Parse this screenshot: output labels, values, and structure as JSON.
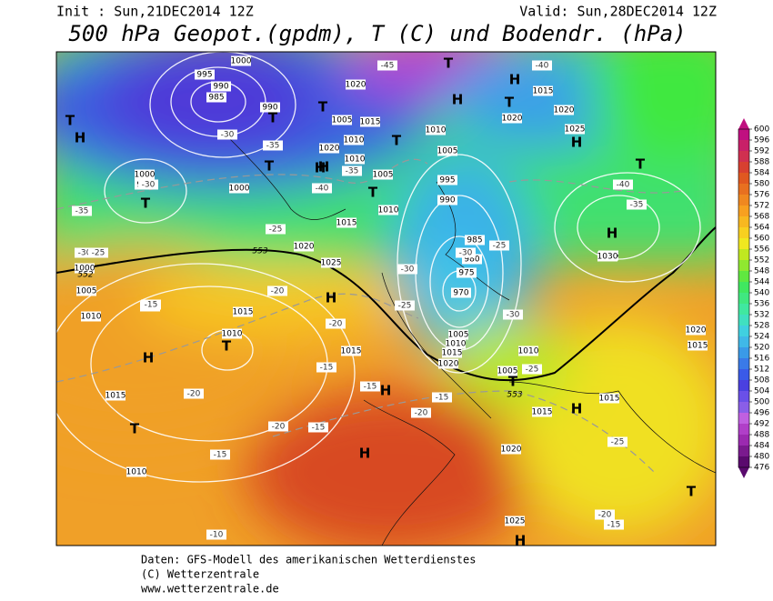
{
  "header": {
    "init": "Init : Sun,21DEC2014 12Z",
    "valid": "Valid: Sun,28DEC2014 12Z",
    "title": "500 hPa Geopot.(gpdm), T (C) und Bodendr. (hPa)"
  },
  "colorbar": {
    "ticks": [
      600,
      596,
      592,
      588,
      584,
      580,
      576,
      572,
      568,
      564,
      560,
      556,
      552,
      548,
      544,
      540,
      536,
      532,
      528,
      524,
      520,
      516,
      512,
      508,
      504,
      500,
      496,
      492,
      488,
      484,
      480,
      476
    ],
    "colors": [
      "#c01080",
      "#c82068",
      "#d03050",
      "#d84030",
      "#e05820",
      "#e87020",
      "#f08820",
      "#f8a020",
      "#f8b820",
      "#f8d020",
      "#f0e820",
      "#c0e820",
      "#90e830",
      "#60e840",
      "#40e860",
      "#40e880",
      "#40e8a0",
      "#40e0c0",
      "#40d0e0",
      "#40b8e8",
      "#3a9ae8",
      "#3a7ae8",
      "#3a5ae8",
      "#4a40e0",
      "#6a50e8",
      "#8a5ee8",
      "#c060e0",
      "#b03fc8",
      "#9b2ab0",
      "#7a1a8e",
      "#5a0a6e"
    ]
  },
  "map": {
    "pressure_labels": [
      "1000",
      "995",
      "990",
      "985",
      "990",
      "1020",
      "1005",
      "1015",
      "1010",
      "1020",
      "1010",
      "1005",
      "1000",
      "995",
      "1000",
      "1015",
      "1010",
      "1005",
      "995",
      "990",
      "1010",
      "985",
      "980",
      "975",
      "970",
      "1005",
      "1010",
      "1015",
      "1020",
      "1000",
      "1005",
      "1010",
      "1015",
      "1010",
      "1015",
      "1020",
      "1025",
      "1030",
      "1020",
      "1025",
      "1010",
      "1015",
      "1020",
      "1025",
      "1015",
      "1020",
      "1015",
      "1010",
      "1005",
      "1015",
      "1015",
      "1020",
      "1025"
    ],
    "temperature_labels": [
      "-45",
      "-40",
      "-30",
      "-35",
      "-30",
      "-25",
      "-35",
      "-40",
      "-35",
      "-30",
      "-25",
      "-20",
      "-20",
      "-30",
      "-25",
      "-20",
      "-15",
      "-20",
      "-15",
      "-20",
      "-25",
      "-15",
      "-15",
      "-15",
      "-10",
      "-15",
      "-20",
      "-15",
      "-25",
      "-30",
      "-35",
      "-40",
      "-25",
      "-30",
      "-20"
    ],
    "centers": [
      "H",
      "T",
      "H",
      "T",
      "T",
      "T",
      "H",
      "T",
      "H",
      "T",
      "H",
      "T",
      "H",
      "T",
      "T",
      "H",
      "T",
      "H",
      "T",
      "H",
      "T",
      "H",
      "H",
      "H",
      "T",
      "H",
      "T"
    ],
    "geopotential_labels": [
      "553",
      "552",
      "553"
    ]
  },
  "footer": {
    "line1": "Daten: GFS-Modell des amerikanischen Wetterdienstes",
    "line2": "(C) Wetterzentrale",
    "line3": "www.wetterzentrale.de"
  }
}
